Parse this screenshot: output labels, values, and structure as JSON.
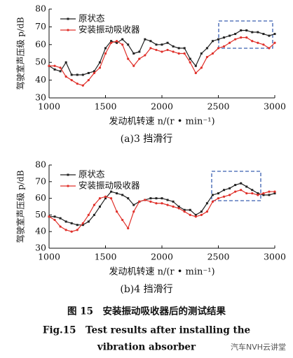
{
  "chart_data": [
    {
      "type": "line",
      "caption": "(a)3 挡滑行",
      "xlabel": "发动机转速 n/(r • min⁻¹)",
      "ylabel": "驾驶室声压级 p/dB",
      "x": [
        1000,
        1050,
        1100,
        1150,
        1200,
        1250,
        1300,
        1350,
        1400,
        1450,
        1500,
        1550,
        1600,
        1650,
        1700,
        1750,
        1800,
        1850,
        1900,
        1950,
        2000,
        2050,
        2100,
        2150,
        2200,
        2250,
        2300,
        2350,
        2400,
        2450,
        2500,
        2550,
        2600,
        2650,
        2700,
        2750,
        2800,
        2850,
        2900,
        2950,
        3000
      ],
      "series": [
        {
          "name": "原状态",
          "color": "#222222",
          "marker": "square",
          "values": [
            48,
            46,
            45,
            50,
            43,
            43,
            43,
            44,
            45,
            50,
            58,
            62,
            61,
            63,
            60,
            55,
            56,
            63,
            62,
            60,
            60,
            61,
            59,
            58,
            58,
            52,
            48,
            55,
            58,
            62,
            63,
            64,
            65,
            66,
            68,
            68,
            67,
            67,
            66,
            65,
            66
          ]
        },
        {
          "name": "安装振动吸收器",
          "color": "#e0302a",
          "marker": "circle",
          "values": [
            48,
            48,
            47,
            42,
            40,
            38,
            37,
            40,
            44,
            47,
            55,
            61,
            62,
            60,
            52,
            48,
            52,
            54,
            58,
            57,
            56,
            57,
            56,
            55,
            55,
            50,
            44,
            47,
            53,
            55,
            58,
            59,
            61,
            63,
            64,
            64,
            62,
            61,
            60,
            58,
            61
          ]
        }
      ],
      "xlim": [
        1000,
        3000
      ],
      "xticks": [
        1000,
        1500,
        2000,
        2500,
        3000
      ],
      "ylim": [
        30,
        80
      ],
      "yticks": [
        30,
        40,
        50,
        60,
        70,
        80
      ],
      "legend": "upper left"
    },
    {
      "type": "line",
      "caption": "(b)4 挡滑行",
      "xlabel": "发动机转速 n/(r • min⁻¹)",
      "ylabel": "驾驶室声压级 p/dB",
      "x": [
        1000,
        1050,
        1100,
        1150,
        1200,
        1250,
        1300,
        1350,
        1400,
        1450,
        1500,
        1550,
        1600,
        1650,
        1700,
        1750,
        1800,
        1850,
        1900,
        1950,
        2000,
        2050,
        2100,
        2150,
        2200,
        2250,
        2300,
        2350,
        2400,
        2450,
        2500,
        2550,
        2600,
        2650,
        2700,
        2750,
        2800,
        2850,
        2900,
        2950,
        3000
      ],
      "series": [
        {
          "name": "原状态",
          "color": "#222222",
          "marker": "square",
          "values": [
            49,
            49,
            48,
            46,
            45,
            44,
            44,
            46,
            50,
            55,
            60,
            64,
            63,
            62,
            60,
            56,
            58,
            59,
            60,
            60,
            60,
            59,
            58,
            55,
            53,
            53,
            50,
            52,
            57,
            62,
            63,
            65,
            66,
            68,
            69,
            67,
            65,
            63,
            62,
            62,
            63
          ]
        },
        {
          "name": "安装振动吸收器",
          "color": "#e0302a",
          "marker": "circle",
          "values": [
            49,
            47,
            43,
            41,
            40,
            41,
            45,
            50,
            56,
            60,
            61,
            60,
            52,
            47,
            42,
            52,
            58,
            59,
            58,
            57,
            57,
            56,
            55,
            54,
            52,
            50,
            49,
            50,
            52,
            58,
            60,
            61,
            62,
            64,
            65,
            63,
            63,
            62,
            63,
            64,
            64
          ]
        }
      ],
      "xlim": [
        1000,
        3000
      ],
      "xticks": [
        1000,
        1500,
        2000,
        2500,
        3000
      ],
      "ylim": [
        30,
        80
      ],
      "yticks": [
        30,
        40,
        50,
        60,
        70,
        80
      ],
      "legend": "upper left"
    }
  ],
  "figure": {
    "caption_cn": "图 15　安装振动吸收器后的测试结果",
    "caption_en": [
      "Fig.15　Test results after installing the",
      "vibration absorber"
    ]
  },
  "watermark": "汽车NVH云讲堂"
}
